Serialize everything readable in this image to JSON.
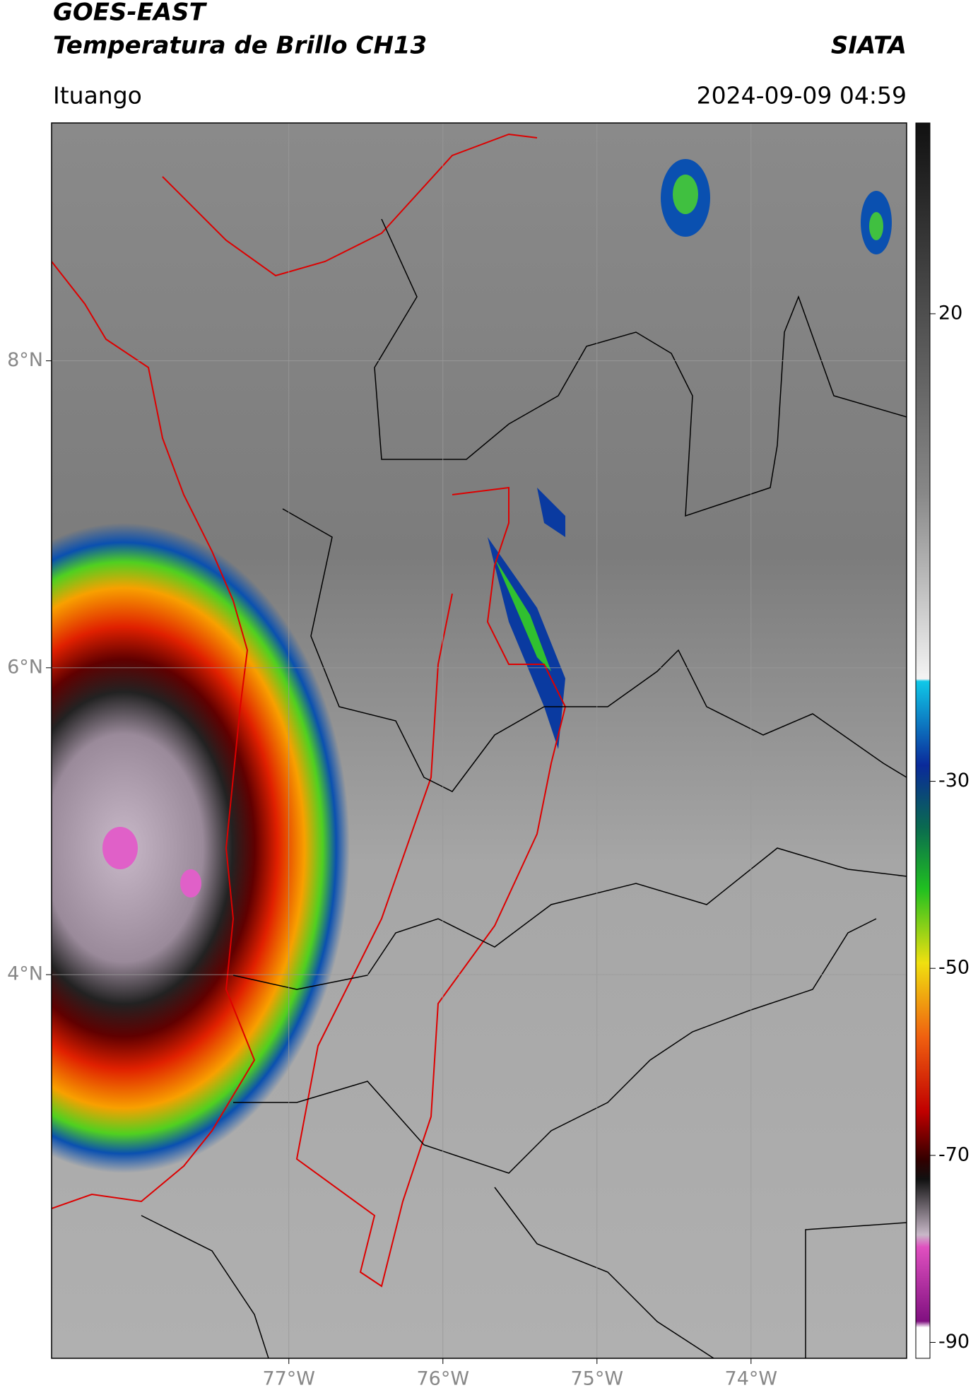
{
  "header": {
    "title": "GOES-EAST",
    "subtitle": "Temperatura de Brillo CH13",
    "source": "SIATA",
    "region": "Ituango",
    "datetime": "2024-09-09 04:59"
  },
  "map": {
    "lat_lim": [
      1.5,
      9.55
    ],
    "lon_lim": [
      -78.54,
      -72.99
    ],
    "lat_ticks": [
      {
        "value": 8,
        "label": "8°N"
      },
      {
        "value": 6,
        "label": "6°N"
      },
      {
        "value": 4,
        "label": "4°N"
      }
    ],
    "lon_ticks": [
      {
        "value": -77,
        "label": "77°W"
      },
      {
        "value": -76,
        "label": "76°W"
      },
      {
        "value": -75,
        "label": "75°W"
      },
      {
        "value": -74,
        "label": "74°W"
      }
    ],
    "grid": true
  },
  "colorbar": {
    "lim": [
      -91.7,
      40.4
    ],
    "ticks": [
      20,
      -30,
      -50,
      -70,
      -90
    ]
  }
}
